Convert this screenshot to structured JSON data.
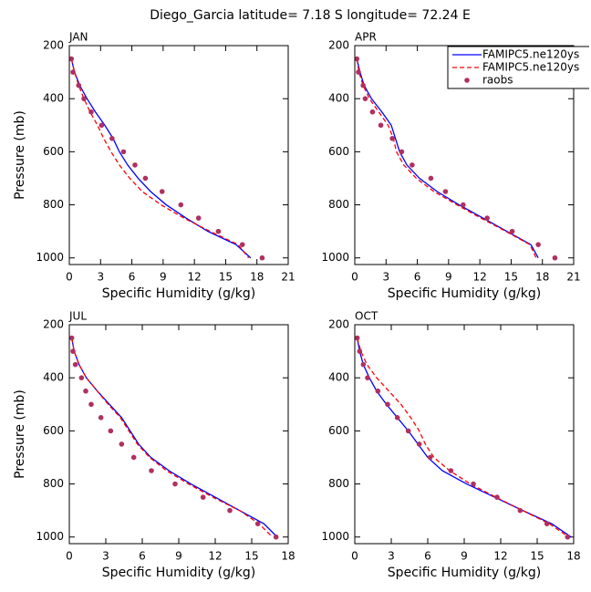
{
  "title": "Diego_Garcia  latitude= 7.18 S longitude= 72.24 E",
  "chart_data": [
    {
      "type": "line",
      "title": "JAN",
      "xlabel": "Specific Humidity (g/kg)",
      "ylabel": "Pressure (mb)",
      "xlim": [
        0,
        21
      ],
      "xticks": [
        0,
        3,
        6,
        9,
        12,
        15,
        18,
        21
      ],
      "ylim": [
        1025,
        200
      ],
      "yticks": [
        200,
        400,
        600,
        800,
        1000
      ],
      "series": [
        {
          "name": "FAMIPC5.ne120ys",
          "color": "#0000ff",
          "dash": false,
          "mode": "lines",
          "x": [
            0.2,
            0.5,
            1.0,
            1.7,
            2.5,
            3.4,
            4.2,
            4.8,
            5.6,
            6.6,
            7.8,
            9.3,
            11.2,
            13.3,
            16.0,
            17.4
          ],
          "values": [
            250,
            300,
            350,
            400,
            450,
            500,
            550,
            600,
            650,
            700,
            750,
            800,
            850,
            900,
            950,
            1000
          ]
        },
        {
          "name": "FAMIPC5.ne120ys",
          "color": "#ff0000",
          "dash": true,
          "mode": "lines",
          "x": [
            0.2,
            0.5,
            0.9,
            1.4,
            2.0,
            2.7,
            3.3,
            4.0,
            4.8,
            5.8,
            7.0,
            8.8,
            11.0,
            13.5,
            16.2,
            17.2
          ],
          "values": [
            250,
            300,
            350,
            400,
            450,
            500,
            550,
            600,
            650,
            700,
            750,
            800,
            850,
            900,
            950,
            1000
          ]
        },
        {
          "name": "raobs",
          "color": "#b03060",
          "mode": "markers",
          "x": [
            0.2,
            0.35,
            0.9,
            1.4,
            2.1,
            3.1,
            4.1,
            5.2,
            6.3,
            7.3,
            8.9,
            10.7,
            12.4,
            14.3,
            16.6,
            18.5
          ],
          "values": [
            250,
            300,
            350,
            400,
            450,
            500,
            550,
            600,
            650,
            700,
            750,
            800,
            850,
            900,
            950,
            1000
          ]
        }
      ]
    },
    {
      "type": "line",
      "title": "APR",
      "xlabel": "Specific Humidity (g/kg)",
      "legend": "upper right",
      "xlim": [
        0,
        21
      ],
      "xticks": [
        0,
        3,
        6,
        9,
        12,
        15,
        18,
        21
      ],
      "ylim": [
        1025,
        200
      ],
      "yticks": [
        200,
        400,
        600,
        800,
        1000
      ],
      "series": [
        {
          "name": "FAMIPC5.ne120ys",
          "color": "#0000ff",
          "dash": false,
          "mode": "lines",
          "x": [
            0.2,
            0.5,
            0.9,
            1.6,
            2.6,
            3.5,
            3.9,
            4.3,
            5.0,
            6.2,
            7.9,
            10.0,
            12.3,
            14.6,
            16.9,
            17.6
          ],
          "values": [
            250,
            300,
            350,
            400,
            450,
            500,
            550,
            600,
            650,
            700,
            750,
            800,
            850,
            900,
            950,
            1000
          ]
        },
        {
          "name": "FAMIPC5.ne120ys",
          "color": "#ff0000",
          "dash": true,
          "mode": "lines",
          "x": [
            0.2,
            0.4,
            0.8,
            1.4,
            2.3,
            3.2,
            3.7,
            4.0,
            4.7,
            5.9,
            7.6,
            9.8,
            12.1,
            14.5,
            16.8,
            17.4
          ],
          "values": [
            250,
            300,
            350,
            400,
            450,
            500,
            550,
            600,
            650,
            700,
            750,
            800,
            850,
            900,
            950,
            1000
          ]
        },
        {
          "name": "raobs",
          "color": "#b03060",
          "mode": "markers",
          "x": [
            0.2,
            0.35,
            0.8,
            1.0,
            1.7,
            2.5,
            3.6,
            4.5,
            5.5,
            7.3,
            8.7,
            10.4,
            12.7,
            15.1,
            17.6,
            19.2
          ],
          "values": [
            250,
            300,
            350,
            400,
            450,
            500,
            550,
            600,
            650,
            700,
            750,
            800,
            850,
            900,
            950,
            1000
          ]
        }
      ]
    },
    {
      "type": "line",
      "title": "JUL",
      "xlabel": "Specific Humidity (g/kg)",
      "ylabel": "Pressure (mb)",
      "xlim": [
        0,
        18
      ],
      "xticks": [
        0,
        3,
        6,
        9,
        12,
        15,
        18
      ],
      "ylim": [
        1025,
        200
      ],
      "yticks": [
        200,
        400,
        600,
        800,
        1000
      ],
      "series": [
        {
          "name": "FAMIPC5.ne120ys",
          "color": "#0000ff",
          "dash": false,
          "mode": "lines",
          "x": [
            0.2,
            0.4,
            0.8,
            1.4,
            2.3,
            3.3,
            4.3,
            5.0,
            5.7,
            6.7,
            8.2,
            10.0,
            12.0,
            14.0,
            16.0,
            17.1
          ],
          "values": [
            250,
            300,
            350,
            400,
            450,
            500,
            550,
            600,
            650,
            700,
            750,
            800,
            850,
            900,
            950,
            1000
          ]
        },
        {
          "name": "FAMIPC5.ne120ys",
          "color": "#ff0000",
          "dash": true,
          "mode": "lines",
          "x": [
            0.2,
            0.4,
            0.8,
            1.4,
            2.3,
            3.2,
            4.2,
            4.9,
            5.6,
            6.6,
            8.0,
            9.8,
            11.8,
            14.0,
            15.6,
            16.7
          ],
          "values": [
            250,
            300,
            350,
            400,
            450,
            500,
            550,
            600,
            650,
            700,
            750,
            800,
            850,
            900,
            950,
            1000
          ]
        },
        {
          "name": "raobs",
          "color": "#b03060",
          "mode": "markers",
          "x": [
            0.2,
            0.3,
            0.5,
            1.0,
            1.35,
            1.8,
            2.6,
            3.4,
            4.3,
            5.3,
            6.75,
            8.7,
            11.0,
            13.2,
            15.5,
            17.0
          ],
          "values": [
            250,
            300,
            350,
            400,
            450,
            500,
            550,
            600,
            650,
            700,
            750,
            800,
            850,
            900,
            950,
            1000
          ]
        }
      ]
    },
    {
      "type": "line",
      "title": "OCT",
      "xlabel": "Specific Humidity (g/kg)",
      "xlim": [
        0,
        18
      ],
      "xticks": [
        0,
        3,
        6,
        9,
        12,
        15,
        18
      ],
      "ylim": [
        1025,
        200
      ],
      "yticks": [
        200,
        400,
        600,
        800,
        1000
      ],
      "series": [
        {
          "name": "FAMIPC5.ne120ys",
          "color": "#0000ff",
          "dash": false,
          "mode": "lines",
          "x": [
            0.2,
            0.4,
            0.7,
            1.2,
            1.8,
            2.6,
            3.5,
            4.4,
            5.2,
            6.0,
            7.2,
            9.2,
            11.5,
            13.8,
            16.2,
            17.8
          ],
          "values": [
            250,
            300,
            350,
            400,
            450,
            500,
            550,
            600,
            650,
            700,
            750,
            800,
            850,
            900,
            950,
            1000
          ]
        },
        {
          "name": "FAMIPC5.ne120ys",
          "color": "#ff0000",
          "dash": true,
          "mode": "lines",
          "x": [
            0.2,
            0.5,
            1.0,
            1.8,
            2.8,
            3.8,
            4.6,
            5.3,
            5.8,
            6.5,
            7.8,
            9.5,
            11.6,
            13.8,
            16.0,
            17.6
          ],
          "values": [
            250,
            300,
            350,
            400,
            450,
            500,
            550,
            600,
            650,
            700,
            750,
            800,
            850,
            900,
            950,
            1000
          ]
        },
        {
          "name": "raobs",
          "color": "#b03060",
          "mode": "markers",
          "x": [
            0.2,
            0.4,
            0.7,
            1.05,
            1.9,
            2.7,
            3.5,
            4.4,
            5.3,
            6.2,
            7.9,
            9.75,
            11.7,
            13.6,
            15.8,
            17.5
          ],
          "values": [
            250,
            300,
            350,
            400,
            450,
            500,
            550,
            600,
            650,
            700,
            750,
            800,
            850,
            900,
            950,
            1000
          ]
        }
      ]
    }
  ]
}
